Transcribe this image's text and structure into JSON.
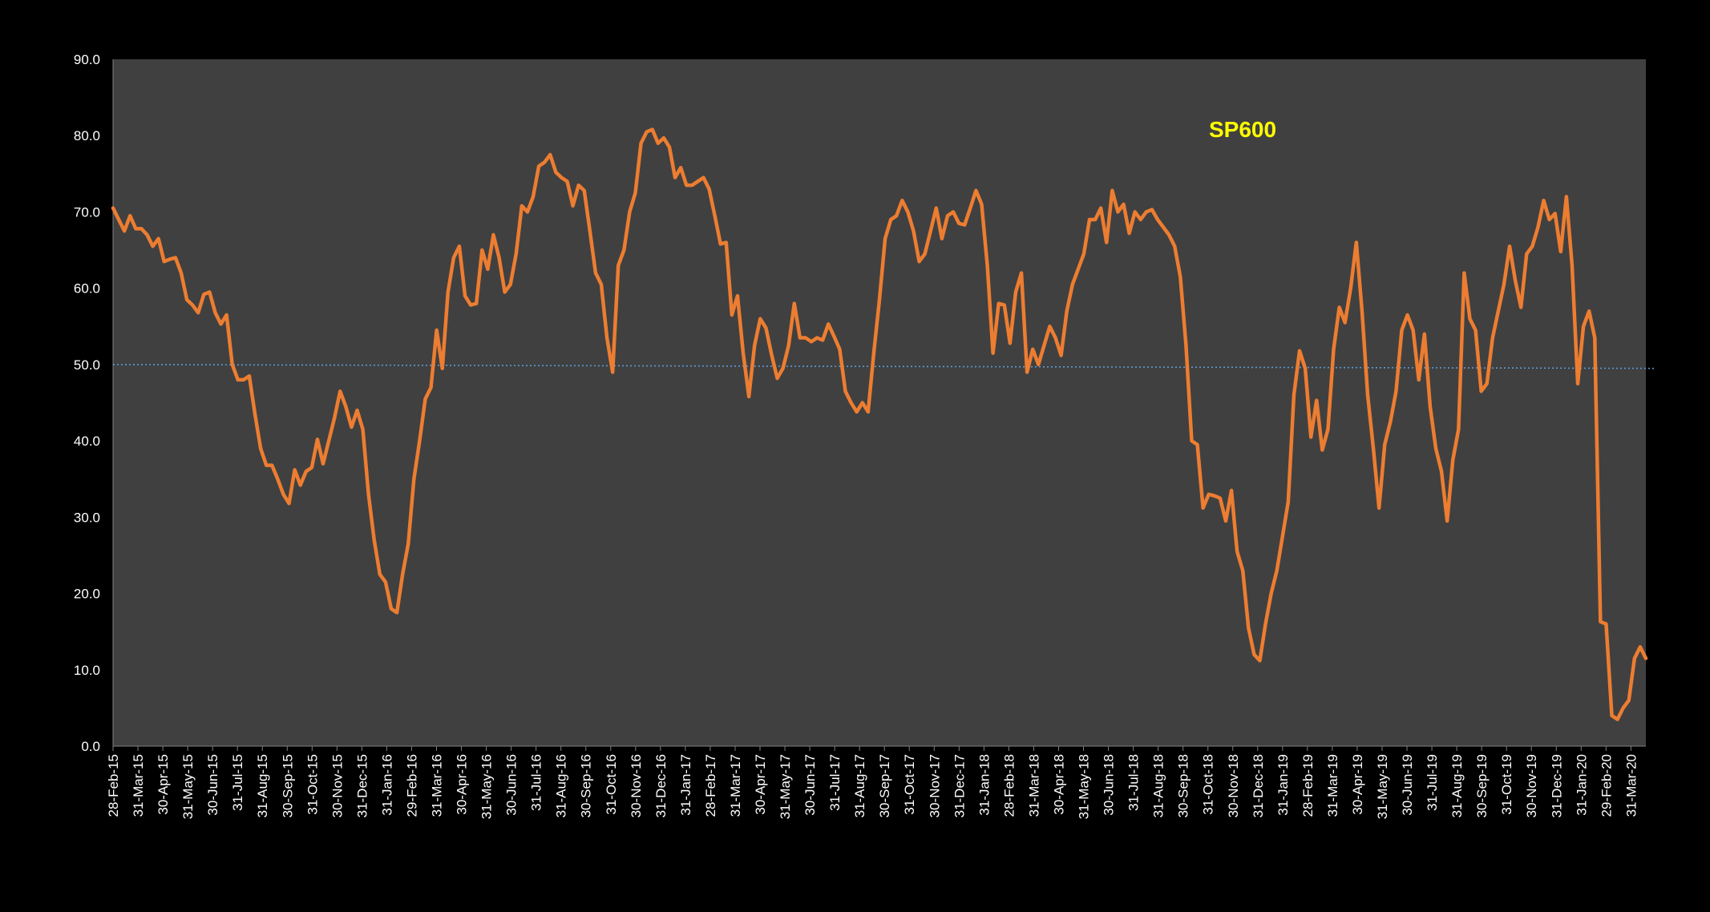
{
  "chart_data": {
    "type": "line",
    "title": "",
    "annotation": "SP600",
    "xlabel": "",
    "ylabel": "",
    "ylim": [
      0,
      90
    ],
    "yticks": [
      "0.0",
      "10.0",
      "20.0",
      "30.0",
      "40.0",
      "50.0",
      "60.0",
      "70.0",
      "80.0",
      "90.0"
    ],
    "xtick_labels": [
      "28-Feb-15",
      "31-Mar-15",
      "30-Apr-15",
      "31-May-15",
      "30-Jun-15",
      "31-Jul-15",
      "31-Aug-15",
      "30-Sep-15",
      "31-Oct-15",
      "30-Nov-15",
      "31-Dec-15",
      "31-Jan-16",
      "29-Feb-16",
      "31-Mar-16",
      "30-Apr-16",
      "31-May-16",
      "30-Jun-16",
      "31-Jul-16",
      "31-Aug-16",
      "30-Sep-16",
      "31-Oct-16",
      "30-Nov-16",
      "31-Dec-16",
      "31-Jan-17",
      "28-Feb-17",
      "31-Mar-17",
      "30-Apr-17",
      "31-May-17",
      "30-Jun-17",
      "31-Jul-17",
      "31-Aug-17",
      "30-Sep-17",
      "31-Oct-17",
      "30-Nov-17",
      "31-Dec-17",
      "31-Jan-18",
      "28-Feb-18",
      "31-Mar-18",
      "30-Apr-18",
      "31-May-18",
      "30-Jun-18",
      "31-Jul-18",
      "31-Aug-18",
      "30-Sep-18",
      "31-Oct-18",
      "30-Nov-18",
      "31-Dec-18",
      "31-Jan-19",
      "28-Feb-19",
      "31-Mar-19",
      "30-Apr-19",
      "31-May-19",
      "30-Jun-19",
      "31-Jul-19",
      "31-Aug-19",
      "30-Sep-19",
      "31-Oct-19",
      "30-Nov-19",
      "31-Dec-19",
      "31-Jan-20",
      "29-Feb-20",
      "31-Mar-20"
    ],
    "grid": false,
    "legend": "none",
    "colors": {
      "background": "#000000",
      "plot_area": "#404040",
      "line": "#ED7D31",
      "reference_line": "#5B9BD5",
      "annotation": "#FFFF00",
      "text": "#FFFFFF"
    },
    "reference_line": {
      "y_start": 50.0,
      "y_end": 49.5,
      "style": "dotted"
    },
    "series": [
      {
        "values": [
          70.5,
          69.0,
          67.5,
          69.5,
          67.8,
          67.8,
          67.0,
          65.5,
          66.5,
          63.5,
          63.8,
          64.0,
          62.0,
          58.5,
          57.8,
          56.8,
          59.2,
          59.5,
          56.8,
          55.3,
          56.5,
          50.0,
          48.0,
          48.0,
          48.5,
          43.5,
          39.0,
          36.8,
          36.8,
          35.0,
          33.0,
          31.8,
          36.2,
          34.2,
          36.0,
          36.5,
          40.2,
          37.0,
          40.0,
          43.0,
          46.5,
          44.5,
          41.8,
          44.0,
          41.5,
          33.0,
          27.0,
          22.5,
          21.5,
          18.0,
          17.5,
          22.5,
          26.5,
          35.0,
          40.0,
          45.5,
          47.0,
          54.5,
          49.5,
          59.5,
          64.0,
          65.5,
          59.0,
          57.8,
          58.0,
          65.0,
          62.5,
          67.0,
          64.0,
          59.5,
          60.5,
          64.5,
          70.8,
          70.0,
          72.0,
          76.0,
          76.5,
          77.5,
          75.2,
          74.5,
          74.0,
          70.8,
          73.5,
          72.8,
          67.5,
          62.0,
          60.5,
          53.5,
          49.0,
          63.0,
          65.0,
          70.0,
          72.5,
          79.0,
          80.5,
          80.8,
          79.0,
          79.7,
          78.5,
          74.5,
          75.8,
          73.5,
          73.5,
          74.0,
          74.5,
          73.0,
          69.5,
          65.8,
          66.0,
          56.5,
          59.0,
          51.5,
          45.8,
          52.5,
          56.0,
          54.8,
          51.3,
          48.2,
          49.5,
          52.5,
          58.0,
          53.5,
          53.5,
          53.0,
          53.5,
          53.2,
          55.3,
          53.7,
          52.0,
          46.5,
          45.0,
          43.8,
          45.0,
          43.8,
          51.5,
          58.5,
          66.5,
          69.0,
          69.5,
          71.5,
          70.0,
          67.5,
          63.5,
          64.5,
          67.5,
          70.5,
          66.5,
          69.5,
          70.0,
          68.5,
          68.3,
          70.5,
          72.8,
          71.0,
          63.0,
          51.5,
          58.0,
          57.8,
          52.8,
          59.5,
          62.0,
          49.0,
          52.0,
          50.0,
          52.5,
          55.0,
          53.5,
          51.2,
          57.0,
          60.5,
          62.5,
          64.5,
          69.0,
          69.0,
          70.5,
          66.0,
          72.8,
          70.0,
          71.0,
          67.2,
          70.0,
          69.0,
          70.0,
          70.3,
          69.0,
          68.0,
          67.0,
          65.5,
          61.5,
          52.5,
          40.0,
          39.5,
          31.2,
          33.0,
          32.8,
          32.5,
          29.5,
          33.5,
          25.5,
          23.0,
          15.5,
          12.0,
          11.2,
          16.0,
          20.0,
          23.0,
          27.5,
          32.0,
          46.0,
          51.8,
          49.5,
          40.5,
          45.3,
          38.8,
          41.5,
          52.0,
          57.5,
          55.5,
          60.0,
          66.0,
          57.0,
          46.0,
          39.0,
          31.2,
          39.5,
          42.5,
          46.5,
          54.5,
          56.5,
          54.5,
          48.0,
          54.0,
          44.5,
          39.0,
          36.0,
          29.5,
          37.5,
          41.5,
          62.0,
          56.0,
          54.5,
          46.5,
          47.5,
          53.5,
          57.0,
          60.5,
          65.5,
          61.0,
          57.5,
          64.5,
          65.5,
          68.0,
          71.5,
          69.0,
          69.8,
          64.8,
          72.0,
          63.0,
          47.5,
          55.0,
          57.0,
          53.5,
          16.3,
          16.0,
          4.0,
          3.5,
          5.0,
          6.0,
          11.5,
          13.0,
          11.5
        ]
      }
    ]
  }
}
